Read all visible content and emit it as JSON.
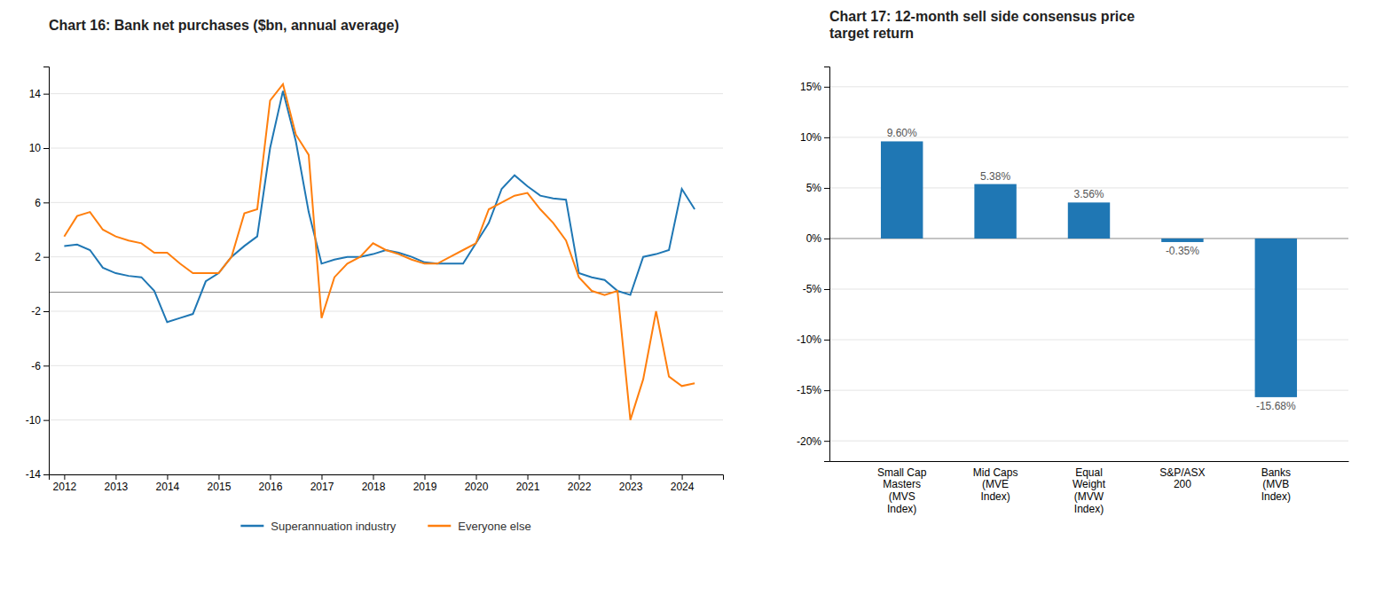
{
  "chart_data": [
    {
      "type": "line",
      "title": "Chart 16: Bank net purchases ($bn, annual average)",
      "x": [
        2012.0,
        2012.25,
        2012.5,
        2012.75,
        2013.0,
        2013.25,
        2013.5,
        2013.75,
        2014.0,
        2014.25,
        2014.5,
        2014.75,
        2015.0,
        2015.25,
        2015.5,
        2015.75,
        2016.0,
        2016.25,
        2016.5,
        2016.75,
        2017.0,
        2017.25,
        2017.5,
        2017.75,
        2018.0,
        2018.25,
        2018.5,
        2018.75,
        2019.0,
        2019.25,
        2019.5,
        2019.75,
        2020.0,
        2020.25,
        2020.5,
        2020.75,
        2021.0,
        2021.25,
        2021.5,
        2021.75,
        2022.0,
        2022.25,
        2022.5,
        2022.75,
        2023.0,
        2023.25,
        2023.5,
        2023.75,
        2024.0,
        2024.25
      ],
      "series": [
        {
          "name": "Superannuation industry",
          "values": [
            2.8,
            2.9,
            2.5,
            1.2,
            0.8,
            0.6,
            0.5,
            -0.5,
            -2.8,
            -2.5,
            -2.2,
            0.2,
            0.8,
            2.0,
            2.8,
            3.5,
            10.0,
            14.2,
            10.5,
            5.3,
            1.5,
            1.8,
            2.0,
            2.0,
            2.2,
            2.5,
            2.3,
            2.0,
            1.6,
            1.5,
            1.5,
            1.5,
            3.0,
            4.5,
            7.0,
            8.0,
            7.2,
            6.5,
            6.3,
            6.2,
            0.8,
            0.5,
            0.3,
            -0.5,
            -0.8,
            2.0,
            2.2,
            2.5,
            7.0,
            5.5
          ]
        },
        {
          "name": "Everyone else",
          "values": [
            3.5,
            5.0,
            5.3,
            4.0,
            3.5,
            3.2,
            3.0,
            2.3,
            2.3,
            1.5,
            0.8,
            0.8,
            0.8,
            2.0,
            5.2,
            5.5,
            13.5,
            14.7,
            11.0,
            9.5,
            -2.5,
            0.5,
            1.5,
            2.0,
            3.0,
            2.5,
            2.2,
            1.8,
            1.5,
            1.5,
            2.0,
            2.5,
            3.0,
            5.5,
            6.0,
            6.5,
            6.7,
            5.5,
            4.5,
            3.2,
            0.5,
            -0.5,
            -0.8,
            -0.5,
            -10.0,
            -7.0,
            -2.0,
            -6.8,
            -7.5,
            -7.3
          ]
        }
      ],
      "hline_y": -0.6,
      "xlim": [
        2011.7,
        2024.8
      ],
      "xticks": [
        2012,
        2013,
        2014,
        2015,
        2016,
        2017,
        2018,
        2019,
        2020,
        2021,
        2022,
        2023,
        2024
      ],
      "ylim": [
        -14,
        16
      ],
      "yticks": [
        -14,
        -10,
        -6,
        -2,
        2,
        6,
        10,
        14
      ],
      "grid": true,
      "legend": "bottom"
    },
    {
      "type": "bar",
      "title": "Chart 17: 12-month sell side consensus price\ntarget return",
      "categories": [
        "Small Cap\nMasters\n(MVS\nIndex)",
        "Mid Caps\n(MVE\nIndex)",
        "Equal\nWeight\n(MVW\nIndex)",
        "S&P/ASX\n200",
        "Banks\n(MVB\nIndex)"
      ],
      "values": [
        0.096,
        0.0538,
        0.0356,
        -0.0035,
        -0.1568
      ],
      "value_labels": [
        "9.60%",
        "5.38%",
        "3.56%",
        "-0.35%",
        "-15.68%"
      ],
      "data_labels": true,
      "ylim": [
        -0.22,
        0.17
      ],
      "yticks": [
        {
          "value": -0.2,
          "label": "-20%"
        },
        {
          "value": -0.15,
          "label": "-15%"
        },
        {
          "value": -0.1,
          "label": "-10%"
        },
        {
          "value": -0.05,
          "label": "-5%"
        },
        {
          "value": 0.0,
          "label": "0%"
        },
        {
          "value": 0.05,
          "label": "5%"
        },
        {
          "value": 0.1,
          "label": "10%"
        },
        {
          "value": 0.15,
          "label": "15%"
        }
      ],
      "grid": true
    }
  ]
}
